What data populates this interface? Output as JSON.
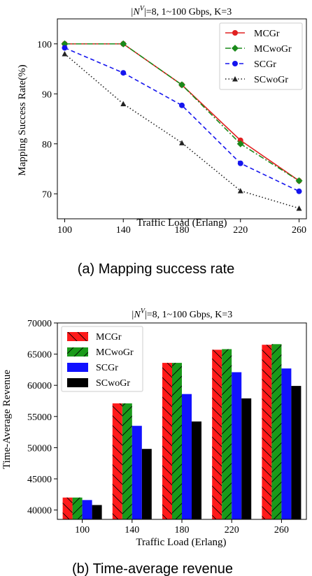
{
  "figures": [
    {
      "caption": "(a)   Mapping success rate",
      "chart_data": {
        "type": "line",
        "title_prefix": "|N",
        "title_sup": "V",
        "title_suffix": "|=8, 1~100 Gbps, K=3",
        "xlabel": "Traffic Load (Erlang)",
        "ylabel": "Mapping Success Rate(%)",
        "x": [
          100,
          140,
          180,
          220,
          260
        ],
        "xlim": [
          95,
          265
        ],
        "ylim": [
          65,
          105
        ],
        "yticks": [
          70,
          80,
          90,
          100
        ],
        "grid": false,
        "legend": "top-right",
        "series": [
          {
            "name": "MCGr",
            "values": [
              100,
              100,
              91.8,
              80.7,
              72.6
            ],
            "color": "#e02020",
            "dash": "solid",
            "marker": "circle"
          },
          {
            "name": "MCwoGr",
            "values": [
              100,
              100,
              91.8,
              80.0,
              72.6
            ],
            "color": "#1a8a1a",
            "dash": "dashdot",
            "marker": "diamond"
          },
          {
            "name": "SCGr",
            "values": [
              99.2,
              94.2,
              87.7,
              76.1,
              70.5
            ],
            "color": "#1515ee",
            "dash": "dashed",
            "marker": "circle"
          },
          {
            "name": "SCwoGr",
            "values": [
              98.0,
              88.0,
              80.2,
              70.6,
              67.1
            ],
            "color": "#222222",
            "dash": "dotted",
            "marker": "triangle"
          }
        ]
      }
    },
    {
      "caption": "(b) Time-average revenue",
      "chart_data": {
        "type": "bar",
        "title_prefix": "|N",
        "title_sup": "V",
        "title_suffix": "|=8, 1~100 Gbps, K=3",
        "xlabel": "Traffic Load (Erlang)",
        "ylabel": "Time-Average Revenue",
        "categories": [
          "100",
          "140",
          "180",
          "220",
          "260"
        ],
        "ylim": [
          38500,
          70000
        ],
        "yticks": [
          40000,
          45000,
          50000,
          55000,
          60000,
          65000,
          70000
        ],
        "grid": false,
        "legend": "top-left",
        "series": [
          {
            "name": "MCGr",
            "values": [
              42000,
              57100,
              63600,
              65700,
              66500
            ],
            "color": "#ff1a1a",
            "hatch": "back-diagonal"
          },
          {
            "name": "MCwoGr",
            "values": [
              42000,
              57100,
              63600,
              65800,
              66600
            ],
            "color": "#1a9a1a",
            "hatch": "forward-diagonal"
          },
          {
            "name": "SCGr",
            "values": [
              41600,
              53500,
              58600,
              62100,
              62700
            ],
            "color": "#1111ff",
            "hatch": "none"
          },
          {
            "name": "SCwoGr",
            "values": [
              40800,
              49800,
              54200,
              57900,
              59900
            ],
            "color": "#000000",
            "hatch": "none"
          }
        ]
      }
    }
  ]
}
